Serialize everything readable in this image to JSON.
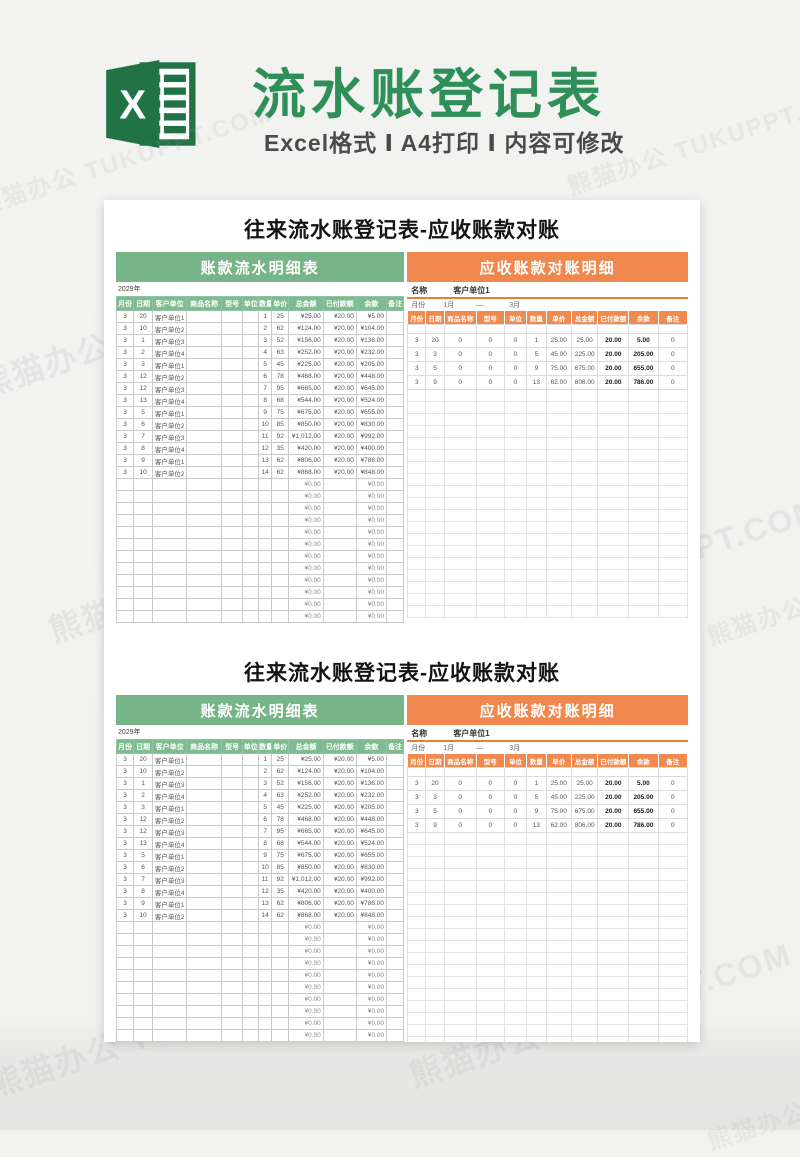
{
  "brand": {
    "title": "流水账登记表",
    "subtitle": "Excel格式 Ⅰ A4打印 Ⅰ 内容可修改",
    "title_color": "#2e8f58",
    "logo_color": "#217346",
    "logo_letter": "X"
  },
  "watermark": {
    "site": "熊猫办公",
    "domain": "TUKUPPT.COM"
  },
  "colors": {
    "banner_green": "#77b588",
    "header_green": "#7fbb90",
    "banner_orange": "#f0884e",
    "accent_orange": "#ed7d31"
  },
  "sheets": [
    {
      "title": "往来流水账登记表-应收账款对账",
      "left": {
        "banner": "账款流水明细表",
        "year": "2029年",
        "columns": [
          "月份",
          "日期",
          "客户单位",
          "商品名称",
          "型号",
          "单位",
          "数量",
          "单价",
          "总金额",
          "已付款额",
          "余款",
          "备注"
        ],
        "col_widths": [
          "6%",
          "6.5%",
          "12%",
          "12%",
          "7.5%",
          "5.5%",
          "4.5%",
          "6%",
          "12%",
          "11.5%",
          "10.5%",
          "6%"
        ],
        "rows": [
          [
            "3",
            "20",
            "客户单位1",
            "",
            "",
            "",
            "1",
            "25",
            "¥25.00",
            "¥20.00",
            "¥5.00",
            ""
          ],
          [
            "3",
            "10",
            "客户单位2",
            "",
            "",
            "",
            "2",
            "62",
            "¥124.00",
            "¥20.00",
            "¥104.00",
            ""
          ],
          [
            "3",
            "1",
            "客户单位3",
            "",
            "",
            "",
            "3",
            "52",
            "¥156.00",
            "¥20.00",
            "¥136.00",
            ""
          ],
          [
            "3",
            "2",
            "客户单位4",
            "",
            "",
            "",
            "4",
            "63",
            "¥252.00",
            "¥20.00",
            "¥232.00",
            ""
          ],
          [
            "3",
            "3",
            "客户单位1",
            "",
            "",
            "",
            "5",
            "45",
            "¥225.00",
            "¥20.00",
            "¥205.00",
            ""
          ],
          [
            "3",
            "12",
            "客户单位2",
            "",
            "",
            "",
            "6",
            "78",
            "¥468.00",
            "¥20.00",
            "¥448.00",
            ""
          ],
          [
            "3",
            "12",
            "客户单位3",
            "",
            "",
            "",
            "7",
            "95",
            "¥665.00",
            "¥20.00",
            "¥645.00",
            ""
          ],
          [
            "3",
            "13",
            "客户单位4",
            "",
            "",
            "",
            "8",
            "68",
            "¥544.00",
            "¥20.00",
            "¥524.00",
            ""
          ],
          [
            "3",
            "5",
            "客户单位1",
            "",
            "",
            "",
            "9",
            "75",
            "¥675.00",
            "¥20.00",
            "¥655.00",
            ""
          ],
          [
            "3",
            "6",
            "客户单位2",
            "",
            "",
            "",
            "10",
            "85",
            "¥850.00",
            "¥20.00",
            "¥830.00",
            ""
          ],
          [
            "3",
            "7",
            "客户单位3",
            "",
            "",
            "",
            "11",
            "92",
            "¥1,012.00",
            "¥20.00",
            "¥992.00",
            ""
          ],
          [
            "3",
            "8",
            "客户单位4",
            "",
            "",
            "",
            "12",
            "35",
            "¥420.00",
            "¥20.00",
            "¥400.00",
            ""
          ],
          [
            "3",
            "9",
            "客户单位1",
            "",
            "",
            "",
            "13",
            "62",
            "¥806.00",
            "¥20.00",
            "¥786.00",
            ""
          ],
          [
            "3",
            "10",
            "客户单位2",
            "",
            "",
            "",
            "14",
            "62",
            "¥868.00",
            "¥20.00",
            "¥848.00",
            ""
          ]
        ],
        "empty_total": "¥0.00",
        "empty_balance": "¥0.00",
        "empty_row_count": 12
      },
      "right": {
        "banner": "应收账款对账明细",
        "name_label": "名称",
        "name_value": "客户单位1",
        "month_label": "月份",
        "month_from": "1月",
        "month_dash": "—",
        "month_to": "3月",
        "columns": [
          "月份",
          "日期",
          "商品名称",
          "型号",
          "单位",
          "数量",
          "单价",
          "总金额",
          "已付款额",
          "余款",
          "备注"
        ],
        "col_widths": [
          "6.5%",
          "6.5%",
          "11.5%",
          "10%",
          "8%",
          "7%",
          "9%",
          "9.5%",
          "11%",
          "10.5%",
          "10.5%"
        ],
        "rows": [
          [
            "3",
            "20",
            "0",
            "0",
            "0",
            "1",
            "25.00",
            "25.00",
            "20.00",
            "5.00",
            "0"
          ],
          [
            "3",
            "3",
            "0",
            "0",
            "0",
            "5",
            "45.00",
            "225.00",
            "20.00",
            "205.00",
            "0"
          ],
          [
            "3",
            "5",
            "0",
            "0",
            "0",
            "9",
            "75.00",
            "675.00",
            "20.00",
            "655.00",
            "0"
          ],
          [
            "3",
            "9",
            "0",
            "0",
            "0",
            "13",
            "62.00",
            "806.00",
            "20.00",
            "786.00",
            "0"
          ]
        ],
        "empty_row_count": 19
      }
    },
    {
      "title": "往来流水账登记表-应收账款对账",
      "left": {
        "banner": "账款流水明细表",
        "year": "2029年",
        "columns": [
          "月份",
          "日期",
          "客户单位",
          "商品名称",
          "型号",
          "单位",
          "数量",
          "单价",
          "总金额",
          "已付款额",
          "余款",
          "备注"
        ],
        "col_widths": [
          "6%",
          "6.5%",
          "12%",
          "12%",
          "7.5%",
          "5.5%",
          "4.5%",
          "6%",
          "12%",
          "11.5%",
          "10.5%",
          "6%"
        ],
        "rows": [
          [
            "3",
            "20",
            "客户单位1",
            "",
            "",
            "",
            "1",
            "25",
            "¥25.00",
            "¥20.00",
            "¥5.00",
            ""
          ],
          [
            "3",
            "10",
            "客户单位2",
            "",
            "",
            "",
            "2",
            "62",
            "¥124.00",
            "¥20.00",
            "¥104.00",
            ""
          ],
          [
            "3",
            "1",
            "客户单位3",
            "",
            "",
            "",
            "3",
            "52",
            "¥156.00",
            "¥20.00",
            "¥136.00",
            ""
          ],
          [
            "3",
            "2",
            "客户单位4",
            "",
            "",
            "",
            "4",
            "63",
            "¥252.00",
            "¥20.00",
            "¥232.00",
            ""
          ],
          [
            "3",
            "3",
            "客户单位1",
            "",
            "",
            "",
            "5",
            "45",
            "¥225.00",
            "¥20.00",
            "¥205.00",
            ""
          ],
          [
            "3",
            "12",
            "客户单位2",
            "",
            "",
            "",
            "6",
            "78",
            "¥468.00",
            "¥20.00",
            "¥448.00",
            ""
          ],
          [
            "3",
            "12",
            "客户单位3",
            "",
            "",
            "",
            "7",
            "95",
            "¥665.00",
            "¥20.00",
            "¥645.00",
            ""
          ],
          [
            "3",
            "13",
            "客户单位4",
            "",
            "",
            "",
            "8",
            "68",
            "¥544.00",
            "¥20.00",
            "¥524.00",
            ""
          ],
          [
            "3",
            "5",
            "客户单位1",
            "",
            "",
            "",
            "9",
            "75",
            "¥675.00",
            "¥20.00",
            "¥655.00",
            ""
          ],
          [
            "3",
            "6",
            "客户单位2",
            "",
            "",
            "",
            "10",
            "85",
            "¥850.00",
            "¥20.00",
            "¥830.00",
            ""
          ],
          [
            "3",
            "7",
            "客户单位3",
            "",
            "",
            "",
            "11",
            "92",
            "¥1,012.00",
            "¥20.00",
            "¥992.00",
            ""
          ],
          [
            "3",
            "8",
            "客户单位4",
            "",
            "",
            "",
            "12",
            "35",
            "¥420.00",
            "¥20.00",
            "¥400.00",
            ""
          ],
          [
            "3",
            "9",
            "客户单位1",
            "",
            "",
            "",
            "13",
            "62",
            "¥806.00",
            "¥20.00",
            "¥786.00",
            ""
          ],
          [
            "3",
            "10",
            "客户单位2",
            "",
            "",
            "",
            "14",
            "62",
            "¥868.00",
            "¥20.00",
            "¥848.00",
            ""
          ]
        ],
        "empty_total": "¥0.00",
        "empty_balance": "¥0.00",
        "empty_row_count": 12
      },
      "right": {
        "banner": "应收账款对账明细",
        "name_label": "名称",
        "name_value": "客户单位1",
        "month_label": "月份",
        "month_from": "1月",
        "month_dash": "—",
        "month_to": "3月",
        "columns": [
          "月份",
          "日期",
          "商品名称",
          "型号",
          "单位",
          "数量",
          "单价",
          "总金额",
          "已付款额",
          "余款",
          "备注"
        ],
        "col_widths": [
          "6.5%",
          "6.5%",
          "11.5%",
          "10%",
          "8%",
          "7%",
          "9%",
          "9.5%",
          "11%",
          "10.5%",
          "10.5%"
        ],
        "rows": [
          [
            "3",
            "20",
            "0",
            "0",
            "0",
            "1",
            "25.00",
            "25.00",
            "20.00",
            "5.00",
            "0"
          ],
          [
            "3",
            "3",
            "0",
            "0",
            "0",
            "5",
            "45.00",
            "225.00",
            "20.00",
            "205.00",
            "0"
          ],
          [
            "3",
            "5",
            "0",
            "0",
            "0",
            "9",
            "75.00",
            "675.00",
            "20.00",
            "655.00",
            "0"
          ],
          [
            "3",
            "9",
            "0",
            "0",
            "0",
            "13",
            "62.00",
            "806.00",
            "20.00",
            "786.00",
            "0"
          ]
        ],
        "empty_row_count": 19
      }
    }
  ]
}
